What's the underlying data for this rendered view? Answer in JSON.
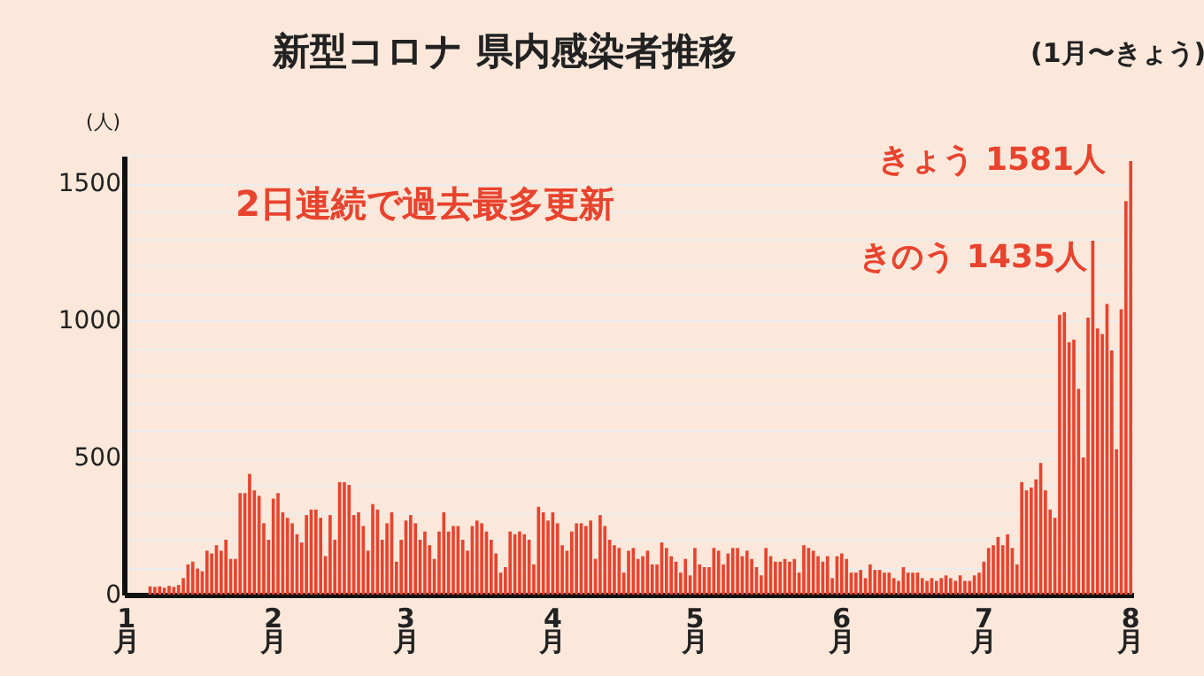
{
  "chart_data": {
    "type": "bar",
    "title": "新型コロナ 県内感染者推移",
    "subtitle": "(1月〜きょう)",
    "ylabel": "(人)",
    "categories": [
      "1月",
      null,
      null,
      null,
      null,
      null,
      null,
      null,
      null,
      null,
      null,
      null,
      null,
      null,
      null,
      null,
      null,
      null,
      null,
      null,
      null,
      null,
      null,
      null,
      null,
      null,
      null,
      null,
      null,
      null,
      null,
      "2月",
      null,
      null,
      null,
      null,
      null,
      null,
      null,
      null,
      null,
      null,
      null,
      null,
      null,
      null,
      null,
      null,
      null,
      null,
      null,
      null,
      null,
      null,
      null,
      null,
      null,
      null,
      null,
      "3月",
      null,
      null,
      null,
      null,
      null,
      null,
      null,
      null,
      null,
      null,
      null,
      null,
      null,
      null,
      null,
      null,
      null,
      null,
      null,
      null,
      null,
      null,
      null,
      null,
      null,
      null,
      null,
      null,
      null,
      null,
      "4月",
      null,
      null,
      null,
      null,
      null,
      null,
      null,
      null,
      null,
      null,
      null,
      null,
      null,
      null,
      null,
      null,
      null,
      null,
      null,
      null,
      null,
      null,
      null,
      null,
      null,
      null,
      null,
      null,
      null,
      "5月",
      null,
      null,
      null,
      null,
      null,
      null,
      null,
      null,
      null,
      null,
      null,
      null,
      null,
      null,
      null,
      null,
      null,
      null,
      null,
      null,
      null,
      null,
      null,
      null,
      null,
      null,
      null,
      null,
      null,
      null,
      "6月",
      null,
      null,
      null,
      null,
      null,
      null,
      null,
      null,
      null,
      null,
      null,
      null,
      null,
      null,
      null,
      null,
      null,
      null,
      null,
      null,
      null,
      null,
      null,
      null,
      null,
      null,
      null,
      null,
      null,
      "7月",
      null,
      null,
      null,
      null,
      null,
      null,
      null,
      null,
      null,
      null,
      null,
      null,
      null,
      null,
      null,
      null,
      null,
      null,
      null,
      null,
      null,
      null,
      null,
      null,
      null,
      null,
      null,
      null,
      null,
      null,
      "8月"
    ],
    "series": [
      {
        "color": "#e8432e",
        "values": [
          0,
          0,
          null,
          null,
          null,
          30,
          28,
          30,
          25,
          32,
          28,
          35,
          60,
          110,
          120,
          95,
          85,
          160,
          150,
          180,
          160,
          200,
          130,
          130,
          370,
          370,
          440,
          380,
          360,
          260,
          200,
          350,
          370,
          300,
          280,
          260,
          220,
          190,
          290,
          310,
          310,
          280,
          140,
          290,
          200,
          410,
          410,
          400,
          290,
          300,
          250,
          160,
          330,
          310,
          200,
          260,
          300,
          120,
          200,
          270,
          290,
          260,
          200,
          230,
          180,
          130,
          230,
          300,
          230,
          250,
          250,
          200,
          160,
          250,
          270,
          260,
          230,
          200,
          150,
          80,
          100,
          230,
          220,
          230,
          220,
          200,
          110,
          320,
          300,
          270,
          300,
          260,
          180,
          160,
          230,
          260,
          260,
          250,
          270,
          130,
          290,
          250,
          200,
          180,
          170,
          80,
          160,
          170,
          130,
          140,
          160,
          110,
          110,
          190,
          170,
          140,
          120,
          80,
          130,
          70,
          170,
          110,
          100,
          100,
          170,
          160,
          110,
          150,
          170,
          170,
          140,
          160,
          130,
          100,
          70,
          170,
          140,
          120,
          120,
          130,
          120,
          130,
          80,
          180,
          170,
          160,
          140,
          120,
          140,
          60,
          140,
          150,
          130,
          80,
          80,
          90,
          60,
          110,
          90,
          90,
          80,
          80,
          60,
          50,
          100,
          80,
          80,
          80,
          60,
          50,
          60,
          50,
          60,
          70,
          60,
          50,
          70,
          50,
          50,
          70,
          80,
          120,
          170,
          180,
          210,
          180,
          220,
          170,
          110,
          410,
          380,
          390,
          420,
          480,
          380,
          310,
          280,
          1020,
          1030,
          920,
          930,
          750,
          500,
          1010,
          1290,
          970,
          950,
          1060,
          890,
          530,
          1040,
          1435,
          1581
        ]
      }
    ],
    "ylim": [
      0,
      1600
    ],
    "yticks": [
      0,
      {
        "value": 100,
        "label": null
      },
      {
        "value": 200,
        "label": null
      },
      {
        "value": 300,
        "label": null
      },
      {
        "value": 400,
        "label": null
      },
      500,
      {
        "value": 600,
        "label": null
      },
      {
        "value": 700,
        "label": null
      },
      {
        "value": 800,
        "label": null
      },
      {
        "value": 900,
        "label": null
      },
      1000,
      {
        "value": 1100,
        "label": null
      },
      {
        "value": 1200,
        "label": null
      },
      {
        "value": 1300,
        "label": null
      },
      {
        "value": 1400,
        "label": null
      },
      1500,
      {
        "value": 1600,
        "label": null
      }
    ],
    "grid": "y",
    "annotations": [
      "2日連続で過去最多更新",
      {
        "text": "きょう 1581人",
        "x": "8月",
        "y": 1581
      },
      "きのう 1435人"
    ]
  }
}
